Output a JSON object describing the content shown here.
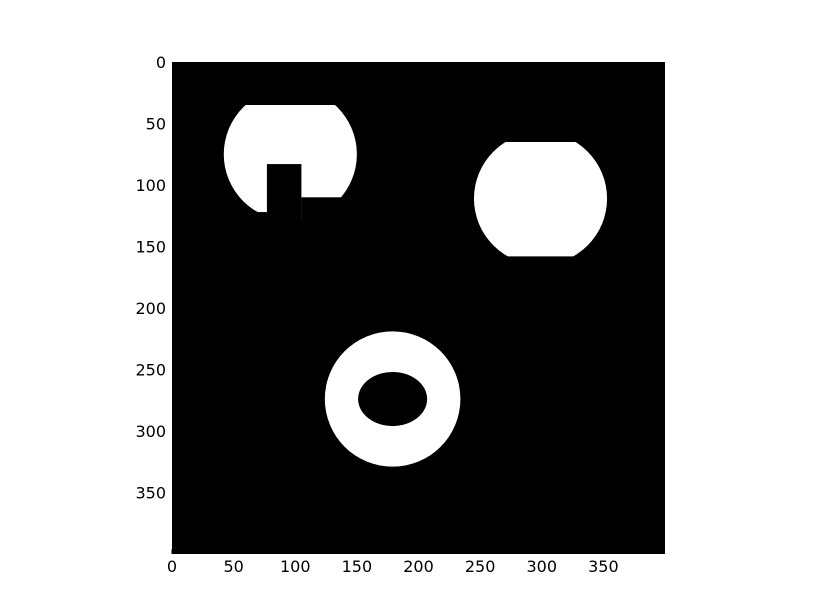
{
  "chart_data": {
    "type": "image",
    "colormap": "gray",
    "image_size": [
      400,
      400
    ],
    "xlim": [
      0,
      400
    ],
    "ylim": [
      400,
      0
    ],
    "x_ticks": [
      0,
      50,
      100,
      150,
      200,
      250,
      300,
      350
    ],
    "y_ticks": [
      0,
      50,
      100,
      150,
      200,
      250,
      300,
      350
    ],
    "background_color": "#000000",
    "foreground_color": "#ffffff",
    "shapes": [
      {
        "name": "clipped-circle-with-notch",
        "type": "circle",
        "center": [
          96,
          75
        ],
        "radius": 54,
        "clip_y": [
          35,
          128
        ],
        "cutouts": [
          {
            "type": "rect",
            "x": [
              77,
              105
            ],
            "y": [
              83,
              130
            ]
          },
          {
            "type": "rect",
            "x": [
              105,
              150
            ],
            "y": [
              110,
              130
            ]
          },
          {
            "type": "rect",
            "x": [
              20,
              77
            ],
            "y": [
              122,
              130
            ]
          }
        ]
      },
      {
        "name": "clipped-circle",
        "type": "circle",
        "center": [
          299,
          111
        ],
        "radius": 54,
        "clip_y": [
          65,
          158
        ]
      },
      {
        "name": "ring",
        "type": "annulus",
        "center": [
          179,
          274
        ],
        "outer_radius": 55,
        "inner_rx": 28,
        "inner_ry": 22
      }
    ]
  }
}
